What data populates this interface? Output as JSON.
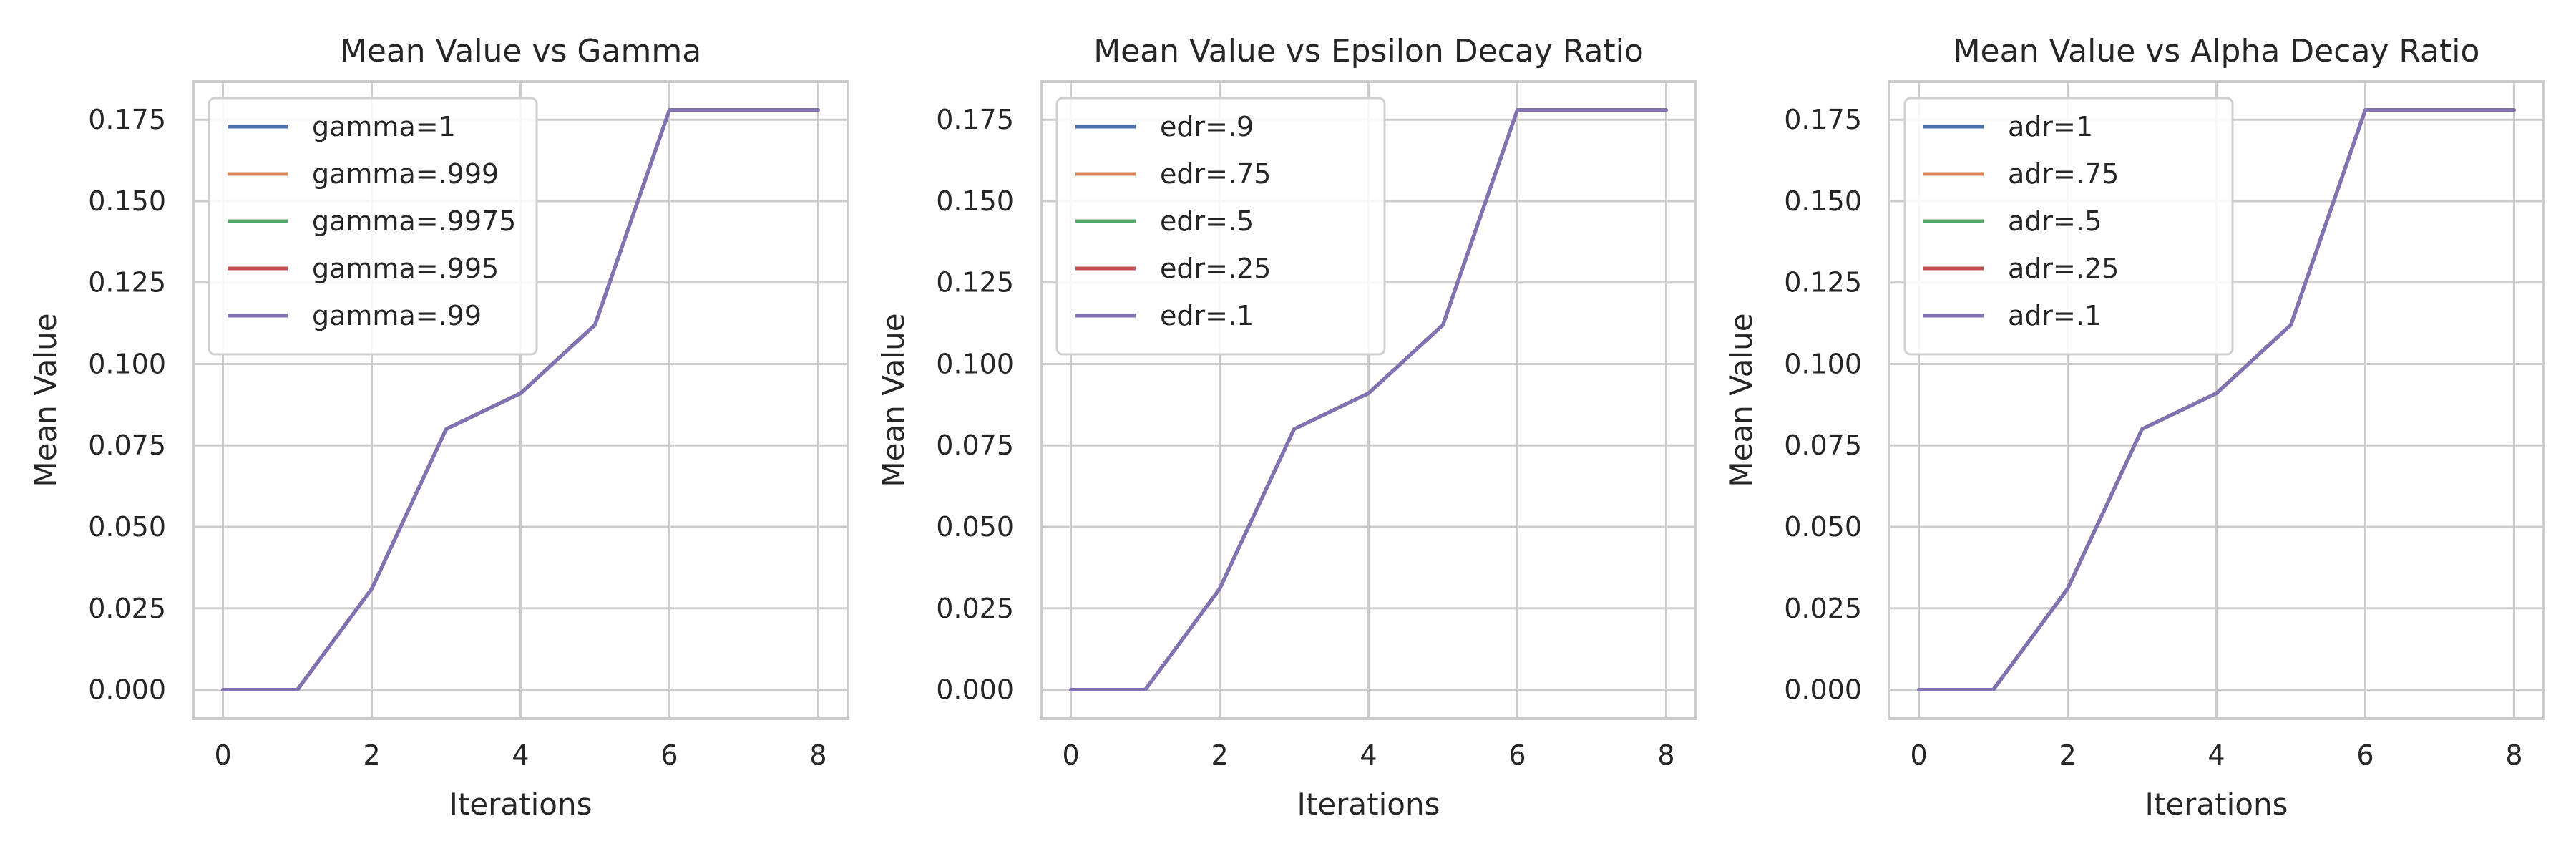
{
  "chart_data": [
    {
      "type": "line",
      "title": "Mean Value vs Gamma",
      "xlabel": "Iterations",
      "ylabel": "Mean Value",
      "xlim": [
        -0.4,
        8.4
      ],
      "ylim": [
        -0.0089,
        0.1867
      ],
      "xticks": [
        0,
        2,
        4,
        6,
        8
      ],
      "yticks": [
        0.0,
        0.025,
        0.05,
        0.075,
        0.1,
        0.125,
        0.15,
        0.175
      ],
      "ytick_labels": [
        "0.000",
        "0.025",
        "0.050",
        "0.075",
        "0.100",
        "0.125",
        "0.150",
        "0.175"
      ],
      "grid": true,
      "legend_position": "top-left",
      "x": [
        0,
        1,
        2,
        3,
        4,
        5,
        6,
        7,
        8
      ],
      "series": [
        {
          "name": "gamma=1",
          "color": "#4c72b0",
          "values": [
            0,
            0,
            0.031,
            0.08,
            0.091,
            0.112,
            0.178,
            0.178,
            0.178
          ]
        },
        {
          "name": "gamma=.999",
          "color": "#dd8452",
          "values": [
            0,
            0,
            0.031,
            0.08,
            0.091,
            0.112,
            0.178,
            0.178,
            0.178
          ]
        },
        {
          "name": "gamma=.9975",
          "color": "#55a868",
          "values": [
            0,
            0,
            0.031,
            0.08,
            0.091,
            0.112,
            0.178,
            0.178,
            0.178
          ]
        },
        {
          "name": "gamma=.995",
          "color": "#c44e52",
          "values": [
            0,
            0,
            0.031,
            0.08,
            0.091,
            0.112,
            0.178,
            0.178,
            0.178
          ]
        },
        {
          "name": "gamma=.99",
          "color": "#8172b3",
          "values": [
            0,
            0,
            0.031,
            0.08,
            0.091,
            0.112,
            0.178,
            0.178,
            0.178
          ]
        }
      ]
    },
    {
      "type": "line",
      "title": "Mean Value vs Epsilon Decay Ratio",
      "xlabel": "Iterations",
      "ylabel": "Mean Value",
      "xlim": [
        -0.4,
        8.4
      ],
      "ylim": [
        -0.0089,
        0.1867
      ],
      "xticks": [
        0,
        2,
        4,
        6,
        8
      ],
      "yticks": [
        0.0,
        0.025,
        0.05,
        0.075,
        0.1,
        0.125,
        0.15,
        0.175
      ],
      "ytick_labels": [
        "0.000",
        "0.025",
        "0.050",
        "0.075",
        "0.100",
        "0.125",
        "0.150",
        "0.175"
      ],
      "grid": true,
      "legend_position": "top-left",
      "x": [
        0,
        1,
        2,
        3,
        4,
        5,
        6,
        7,
        8
      ],
      "series": [
        {
          "name": "edr=.9",
          "color": "#4c72b0",
          "values": [
            0,
            0,
            0.031,
            0.08,
            0.091,
            0.112,
            0.178,
            0.178,
            0.178
          ]
        },
        {
          "name": "edr=.75",
          "color": "#dd8452",
          "values": [
            0,
            0,
            0.031,
            0.08,
            0.091,
            0.112,
            0.178,
            0.178,
            0.178
          ]
        },
        {
          "name": "edr=.5",
          "color": "#55a868",
          "values": [
            0,
            0,
            0.031,
            0.08,
            0.091,
            0.112,
            0.178,
            0.178,
            0.178
          ]
        },
        {
          "name": "edr=.25",
          "color": "#c44e52",
          "values": [
            0,
            0,
            0.031,
            0.08,
            0.091,
            0.112,
            0.178,
            0.178,
            0.178
          ]
        },
        {
          "name": "edr=.1",
          "color": "#8172b3",
          "values": [
            0,
            0,
            0.031,
            0.08,
            0.091,
            0.112,
            0.178,
            0.178,
            0.178
          ]
        }
      ]
    },
    {
      "type": "line",
      "title": "Mean Value vs Alpha Decay Ratio",
      "xlabel": "Iterations",
      "ylabel": "Mean Value",
      "xlim": [
        -0.4,
        8.4
      ],
      "ylim": [
        -0.0089,
        0.1867
      ],
      "xticks": [
        0,
        2,
        4,
        6,
        8
      ],
      "yticks": [
        0.0,
        0.025,
        0.05,
        0.075,
        0.1,
        0.125,
        0.15,
        0.175
      ],
      "ytick_labels": [
        "0.000",
        "0.025",
        "0.050",
        "0.075",
        "0.100",
        "0.125",
        "0.150",
        "0.175"
      ],
      "grid": true,
      "legend_position": "top-left",
      "x": [
        0,
        1,
        2,
        3,
        4,
        5,
        6,
        7,
        8
      ],
      "series": [
        {
          "name": "adr=1",
          "color": "#4c72b0",
          "values": [
            0,
            0,
            0.031,
            0.08,
            0.091,
            0.112,
            0.178,
            0.178,
            0.178
          ]
        },
        {
          "name": "adr=.75",
          "color": "#dd8452",
          "values": [
            0,
            0,
            0.031,
            0.08,
            0.091,
            0.112,
            0.178,
            0.178,
            0.178
          ]
        },
        {
          "name": "adr=.5",
          "color": "#55a868",
          "values": [
            0,
            0,
            0.031,
            0.08,
            0.091,
            0.112,
            0.178,
            0.178,
            0.178
          ]
        },
        {
          "name": "adr=.25",
          "color": "#c44e52",
          "values": [
            0,
            0,
            0.031,
            0.08,
            0.091,
            0.112,
            0.178,
            0.178,
            0.178
          ]
        },
        {
          "name": "adr=.1",
          "color": "#8172b3",
          "values": [
            0,
            0,
            0.031,
            0.08,
            0.091,
            0.112,
            0.178,
            0.178,
            0.178
          ]
        }
      ]
    }
  ]
}
